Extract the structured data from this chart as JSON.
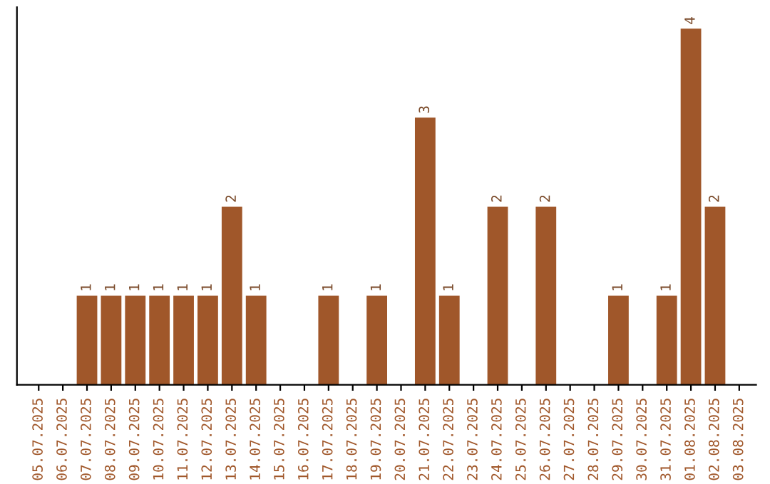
{
  "chart_data": {
    "type": "bar",
    "categories": [
      "05.07.2025",
      "06.07.2025",
      "07.07.2025",
      "08.07.2025",
      "09.07.2025",
      "10.07.2025",
      "11.07.2025",
      "12.07.2025",
      "13.07.2025",
      "14.07.2025",
      "15.07.2025",
      "16.07.2025",
      "17.07.2025",
      "18.07.2025",
      "19.07.2025",
      "20.07.2025",
      "21.07.2025",
      "22.07.2025",
      "23.07.2025",
      "24.07.2025",
      "25.07.2025",
      "26.07.2025",
      "27.07.2025",
      "28.07.2025",
      "29.07.2025",
      "30.07.2025",
      "31.07.2025",
      "01.08.2025",
      "02.08.2025",
      "03.08.2025"
    ],
    "values": [
      null,
      null,
      1,
      1,
      1,
      1,
      1,
      1,
      2,
      1,
      null,
      null,
      1,
      null,
      1,
      null,
      3,
      1,
      null,
      2,
      null,
      2,
      null,
      null,
      1,
      null,
      1,
      4,
      2,
      null
    ],
    "color": "#a0572a",
    "data_labels": true,
    "tick_labels": "x",
    "grid": false,
    "legend": false
  }
}
